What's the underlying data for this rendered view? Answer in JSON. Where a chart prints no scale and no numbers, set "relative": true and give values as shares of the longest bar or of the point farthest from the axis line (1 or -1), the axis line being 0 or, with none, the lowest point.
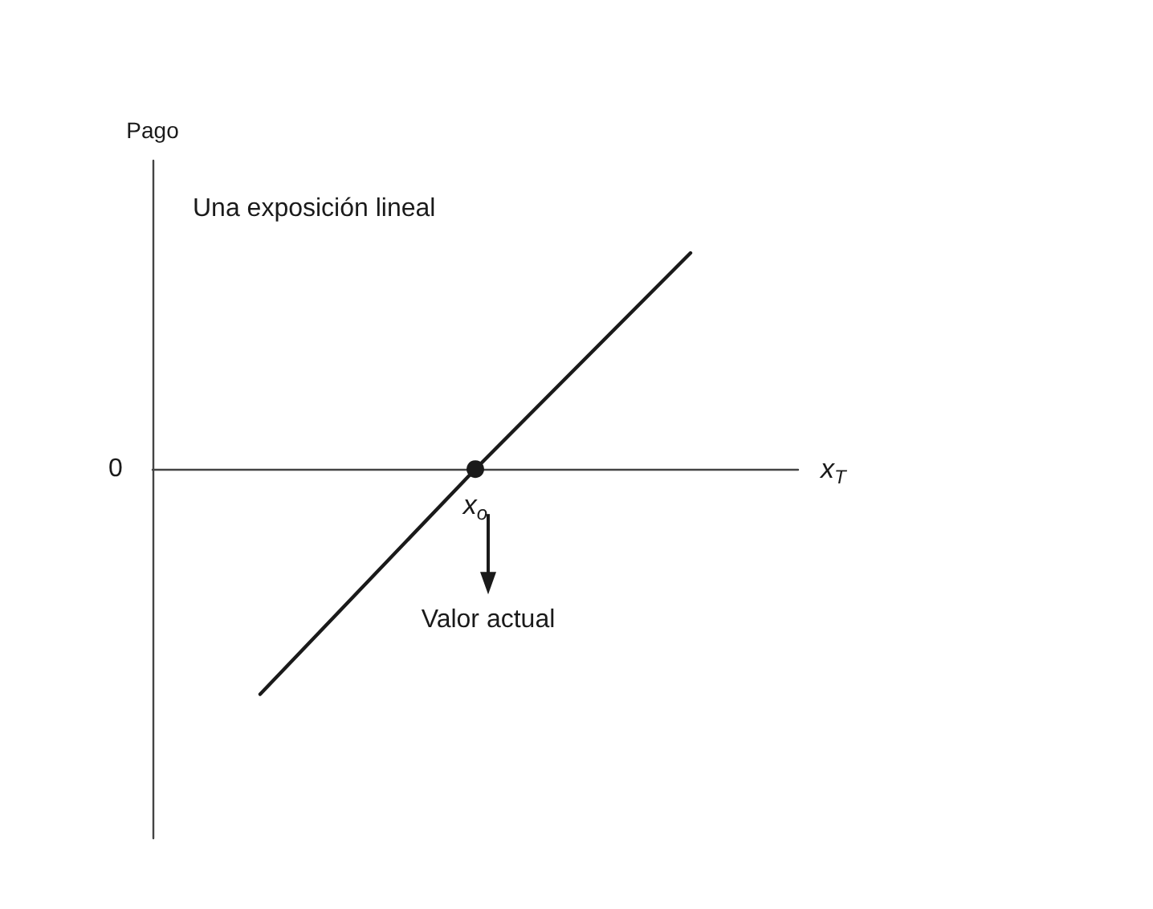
{
  "chart_data": {
    "type": "line",
    "relative": true,
    "xlabel": "x$_{T}$",
    "ylabel": "Pago",
    "categories": [
      null,
      null,
      null
    ],
    "series": [
      {
        "color": "#1a1a1a",
        "values": [
          -1,
          0,
          0.96
        ]
      }
    ],
    "annotations": [
      "Una exposición lineal",
      {
        "text": "x$_{o}$",
        "y": 0
      },
      "Valor actual",
      "0"
    ]
  }
}
